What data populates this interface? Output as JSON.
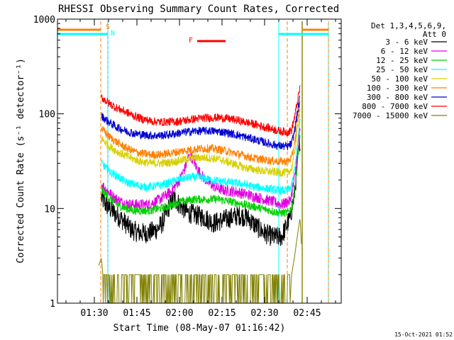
{
  "chart_data": {
    "type": "line",
    "title": "RHESSI Observing Summary Count Rates, Corrected",
    "xlabel": "Start Time (08-May-07 01:16:42)",
    "ylabel": "Corrected Count Rate (s⁻¹ detector⁻¹)",
    "y_scale": "log",
    "ylim": [
      1,
      1000
    ],
    "xlim_minutes": [
      77,
      177
    ],
    "y_ticks": [
      {
        "value": 1,
        "label": "1"
      },
      {
        "value": 10,
        "label": "10"
      },
      {
        "value": 100,
        "label": "100"
      },
      {
        "value": 1000,
        "label": "1000"
      }
    ],
    "x_ticks": [
      {
        "minutes": 90,
        "label": "01:30"
      },
      {
        "minutes": 105,
        "label": "01:45"
      },
      {
        "minutes": 120,
        "label": "02:00"
      },
      {
        "minutes": 135,
        "label": "02:15"
      },
      {
        "minutes": 150,
        "label": "02:30"
      },
      {
        "minutes": 165,
        "label": "02:45"
      }
    ],
    "legend_header": [
      "Det 1,3,4,5,6,9,",
      "Att 0"
    ],
    "legend_position": "right",
    "footer_text": "15-Oct-2021 01:52",
    "series": [
      {
        "name": "3 - 6 keV",
        "color": "#000000",
        "points": [
          [
            92.5,
            13
          ],
          [
            94,
            11
          ],
          [
            97,
            9
          ],
          [
            100,
            7.5
          ],
          [
            103,
            6
          ],
          [
            106,
            5.5
          ],
          [
            109,
            5.5
          ],
          [
            112,
            6
          ],
          [
            114,
            7
          ],
          [
            116,
            10
          ],
          [
            118,
            13
          ],
          [
            120,
            11
          ],
          [
            123,
            9
          ],
          [
            126,
            8.5
          ],
          [
            129,
            8
          ],
          [
            132,
            7
          ],
          [
            135,
            7.5
          ],
          [
            138,
            8
          ],
          [
            141,
            8.5
          ],
          [
            144,
            8
          ],
          [
            147,
            6.5
          ],
          [
            150,
            5.5
          ],
          [
            153,
            5
          ],
          [
            156,
            5
          ],
          [
            159,
            8
          ],
          [
            160.5,
            14
          ],
          [
            161.5,
            28
          ],
          [
            162.5,
            55
          ]
        ]
      },
      {
        "name": "6 - 12 keV",
        "color": "#e000e0",
        "points": [
          [
            92.5,
            18
          ],
          [
            94,
            16
          ],
          [
            97,
            13
          ],
          [
            100,
            11.5
          ],
          [
            103,
            11
          ],
          [
            106,
            11
          ],
          [
            109,
            11
          ],
          [
            112,
            12
          ],
          [
            114,
            13
          ],
          [
            117,
            15
          ],
          [
            120,
            20
          ],
          [
            122,
            27
          ],
          [
            123,
            34
          ],
          [
            124,
            36
          ],
          [
            125,
            32
          ],
          [
            126,
            27
          ],
          [
            128,
            22
          ],
          [
            130,
            19
          ],
          [
            133,
            16.5
          ],
          [
            136,
            15.5
          ],
          [
            140,
            15
          ],
          [
            144,
            14
          ],
          [
            148,
            13
          ],
          [
            152,
            12
          ],
          [
            156,
            11
          ],
          [
            159,
            12
          ],
          [
            160.5,
            20
          ],
          [
            161.5,
            35
          ],
          [
            162.5,
            70
          ]
        ]
      },
      {
        "name": "12 - 25 keV",
        "color": "#00d000",
        "points": [
          [
            92.5,
            16
          ],
          [
            95,
            13
          ],
          [
            98,
            11
          ],
          [
            101,
            10
          ],
          [
            104,
            9.5
          ],
          [
            107,
            9.5
          ],
          [
            110,
            9.5
          ],
          [
            113,
            10
          ],
          [
            116,
            10.5
          ],
          [
            119,
            11.5
          ],
          [
            122,
            12
          ],
          [
            125,
            12.5
          ],
          [
            128,
            12.5
          ],
          [
            131,
            12.5
          ],
          [
            134,
            12.5
          ],
          [
            137,
            12
          ],
          [
            140,
            11.5
          ],
          [
            143,
            11
          ],
          [
            146,
            10.5
          ],
          [
            149,
            10
          ],
          [
            152,
            9.5
          ],
          [
            155,
            9
          ],
          [
            158,
            9
          ],
          [
            159.5,
            10
          ],
          [
            160.5,
            15
          ],
          [
            161.5,
            28
          ],
          [
            162.5,
            60
          ]
        ]
      },
      {
        "name": "25 - 50 keV",
        "color": "#00ffff",
        "points": [
          [
            92.5,
            30
          ],
          [
            95,
            25
          ],
          [
            98,
            22
          ],
          [
            101,
            19
          ],
          [
            104,
            18
          ],
          [
            107,
            17
          ],
          [
            110,
            17
          ],
          [
            113,
            17.5
          ],
          [
            116,
            18.5
          ],
          [
            119,
            20
          ],
          [
            122,
            21
          ],
          [
            125,
            21.5
          ],
          [
            128,
            21
          ],
          [
            131,
            20
          ],
          [
            134,
            19.5
          ],
          [
            137,
            19
          ],
          [
            140,
            18.5
          ],
          [
            143,
            18
          ],
          [
            146,
            17
          ],
          [
            149,
            16.5
          ],
          [
            152,
            16
          ],
          [
            155,
            15.5
          ],
          [
            158,
            15.5
          ],
          [
            159.5,
            17
          ],
          [
            160.5,
            25
          ],
          [
            161.5,
            45
          ],
          [
            162.5,
            85
          ]
        ]
      },
      {
        "name": "50 - 100 keV",
        "color": "#d8d000",
        "points": [
          [
            92.5,
            55
          ],
          [
            95,
            46
          ],
          [
            98,
            40
          ],
          [
            101,
            36
          ],
          [
            104,
            33
          ],
          [
            107,
            31
          ],
          [
            110,
            30
          ],
          [
            113,
            30
          ],
          [
            116,
            30.5
          ],
          [
            119,
            31.5
          ],
          [
            122,
            33
          ],
          [
            125,
            34
          ],
          [
            128,
            34.5
          ],
          [
            131,
            34
          ],
          [
            134,
            33
          ],
          [
            137,
            31
          ],
          [
            140,
            29
          ],
          [
            143,
            27
          ],
          [
            146,
            26
          ],
          [
            149,
            25
          ],
          [
            152,
            24.5
          ],
          [
            155,
            24
          ],
          [
            158,
            24
          ],
          [
            159.5,
            26
          ],
          [
            160.5,
            38
          ],
          [
            161.5,
            65
          ],
          [
            162.5,
            110
          ]
        ]
      },
      {
        "name": "100 - 300 keV",
        "color": "#ff8000",
        "points": [
          [
            92.5,
            70
          ],
          [
            95,
            58
          ],
          [
            98,
            50
          ],
          [
            101,
            44
          ],
          [
            104,
            40
          ],
          [
            107,
            38
          ],
          [
            110,
            37
          ],
          [
            113,
            37
          ],
          [
            116,
            38
          ],
          [
            119,
            39.5
          ],
          [
            122,
            41
          ],
          [
            125,
            42
          ],
          [
            128,
            43
          ],
          [
            131,
            43
          ],
          [
            134,
            42
          ],
          [
            137,
            40
          ],
          [
            140,
            38
          ],
          [
            143,
            36
          ],
          [
            146,
            34
          ],
          [
            149,
            33
          ],
          [
            152,
            32
          ],
          [
            155,
            31.5
          ],
          [
            158,
            31.5
          ],
          [
            159.5,
            34
          ],
          [
            160.5,
            48
          ],
          [
            161.5,
            80
          ],
          [
            162.5,
            130
          ]
        ]
      },
      {
        "name": "300 - 800 keV",
        "color": "#0000d0",
        "points": [
          [
            92.5,
            95
          ],
          [
            95,
            82
          ],
          [
            98,
            72
          ],
          [
            101,
            66
          ],
          [
            104,
            62
          ],
          [
            107,
            60
          ],
          [
            110,
            59
          ],
          [
            113,
            59
          ],
          [
            116,
            60
          ],
          [
            119,
            62
          ],
          [
            122,
            64
          ],
          [
            125,
            65.5
          ],
          [
            128,
            66
          ],
          [
            131,
            66
          ],
          [
            134,
            65
          ],
          [
            137,
            63
          ],
          [
            140,
            60
          ],
          [
            143,
            57
          ],
          [
            146,
            54
          ],
          [
            149,
            51
          ],
          [
            152,
            48
          ],
          [
            155,
            46
          ],
          [
            158,
            45
          ],
          [
            159.5,
            48
          ],
          [
            160.5,
            65
          ],
          [
            161.5,
            100
          ],
          [
            162.5,
            150
          ]
        ]
      },
      {
        "name": "800 - 7000 keV",
        "color": "#ff0000",
        "points": [
          [
            92.5,
            150
          ],
          [
            95,
            130
          ],
          [
            98,
            115
          ],
          [
            101,
            105
          ],
          [
            104,
            95
          ],
          [
            107,
            88
          ],
          [
            110,
            84
          ],
          [
            113,
            82
          ],
          [
            116,
            82
          ],
          [
            119,
            83
          ],
          [
            122,
            85
          ],
          [
            125,
            88
          ],
          [
            128,
            90
          ],
          [
            131,
            91
          ],
          [
            134,
            91
          ],
          [
            137,
            89
          ],
          [
            140,
            86
          ],
          [
            143,
            82
          ],
          [
            146,
            78
          ],
          [
            149,
            74
          ],
          [
            152,
            70
          ],
          [
            155,
            66
          ],
          [
            158,
            64
          ],
          [
            159.5,
            67
          ],
          [
            160.5,
            90
          ],
          [
            161.5,
            130
          ],
          [
            162.5,
            190
          ]
        ]
      },
      {
        "name": "7000 - 15000 keV",
        "color": "#808000",
        "points": [
          [
            91.5,
            2.5
          ],
          [
            92.5,
            3
          ],
          [
            93,
            2
          ],
          [
            97,
            2
          ],
          [
            100,
            1
          ],
          [
            109,
            1
          ],
          [
            110,
            2
          ],
          [
            117,
            2
          ],
          [
            118,
            1
          ],
          [
            119,
            2
          ],
          [
            128,
            2
          ],
          [
            129,
            1
          ],
          [
            131,
            2
          ],
          [
            138,
            2
          ],
          [
            140,
            1
          ],
          [
            141,
            2
          ],
          [
            146,
            2
          ],
          [
            147,
            1
          ],
          [
            150,
            2
          ],
          [
            156,
            1
          ],
          [
            159,
            1
          ],
          [
            159.5,
            2
          ],
          [
            160.5,
            3
          ],
          [
            161.5,
            5
          ],
          [
            162.5,
            8
          ],
          [
            163,
            4
          ]
        ]
      }
    ],
    "markers": [
      {
        "label": "S",
        "color": "#ff8000"
      },
      {
        "label": "N",
        "color": "#00ffff"
      },
      {
        "label": "F",
        "color": "#ff0000"
      }
    ]
  }
}
